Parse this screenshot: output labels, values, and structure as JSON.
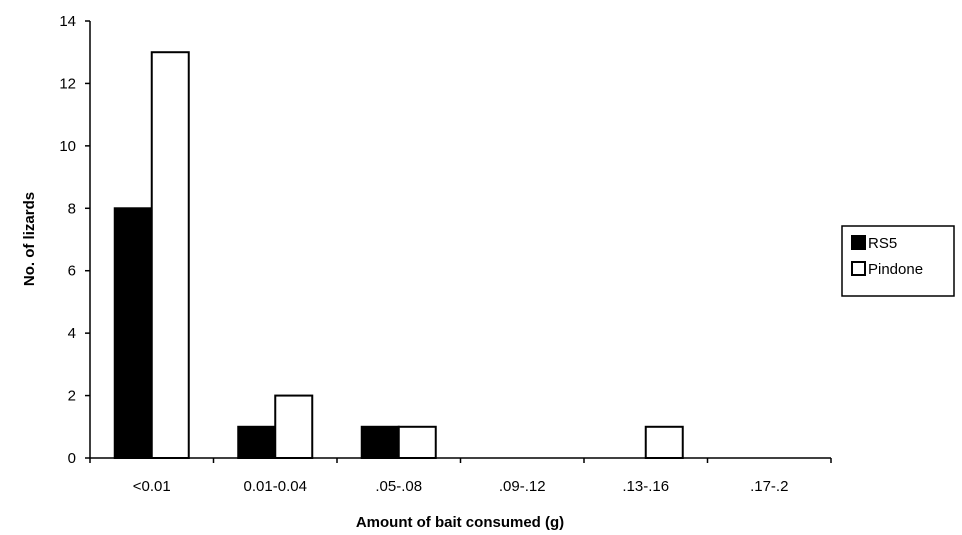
{
  "chart_data": {
    "type": "bar",
    "title": "",
    "xlabel": "Amount of bait consumed (g)",
    "ylabel": "No. of lizards",
    "categories": [
      "<0.01",
      "0.01-0.04",
      ".05-.08",
      ".09-.12",
      ".13-.16",
      ".17-.2"
    ],
    "series": [
      {
        "name": "RS5",
        "values": [
          8,
          1,
          1,
          0,
          0,
          0
        ],
        "color": "#000000"
      },
      {
        "name": "Pindone",
        "values": [
          13,
          2,
          1,
          0,
          1,
          0
        ],
        "color": "#ffffff"
      }
    ],
    "ylim": [
      0,
      14
    ],
    "yticks": [
      0,
      2,
      4,
      6,
      8,
      10,
      12,
      14
    ],
    "grid": false,
    "legend": "right"
  }
}
